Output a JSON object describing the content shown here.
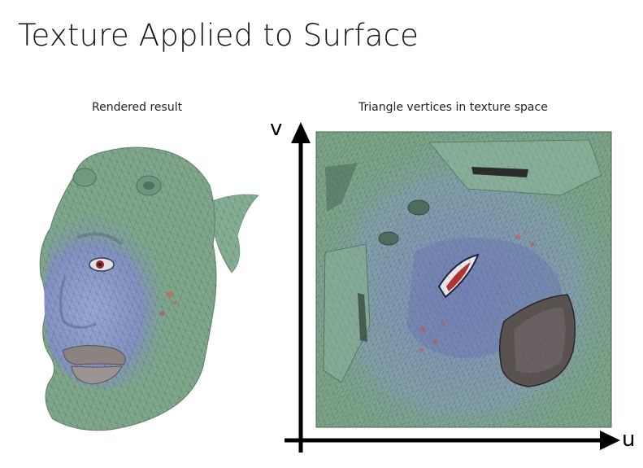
{
  "slide": {
    "title": "Texture Applied to Surface",
    "left_caption": "Rendered result",
    "right_caption": "Triangle vertices in texture space"
  },
  "axes": {
    "vertical_label": "v",
    "horizontal_label": "u"
  },
  "colors": {
    "skin_green": "#7fa88c",
    "skin_blue": "#8296c4",
    "lip_gray": "#8a8382",
    "axis": "#000000"
  }
}
